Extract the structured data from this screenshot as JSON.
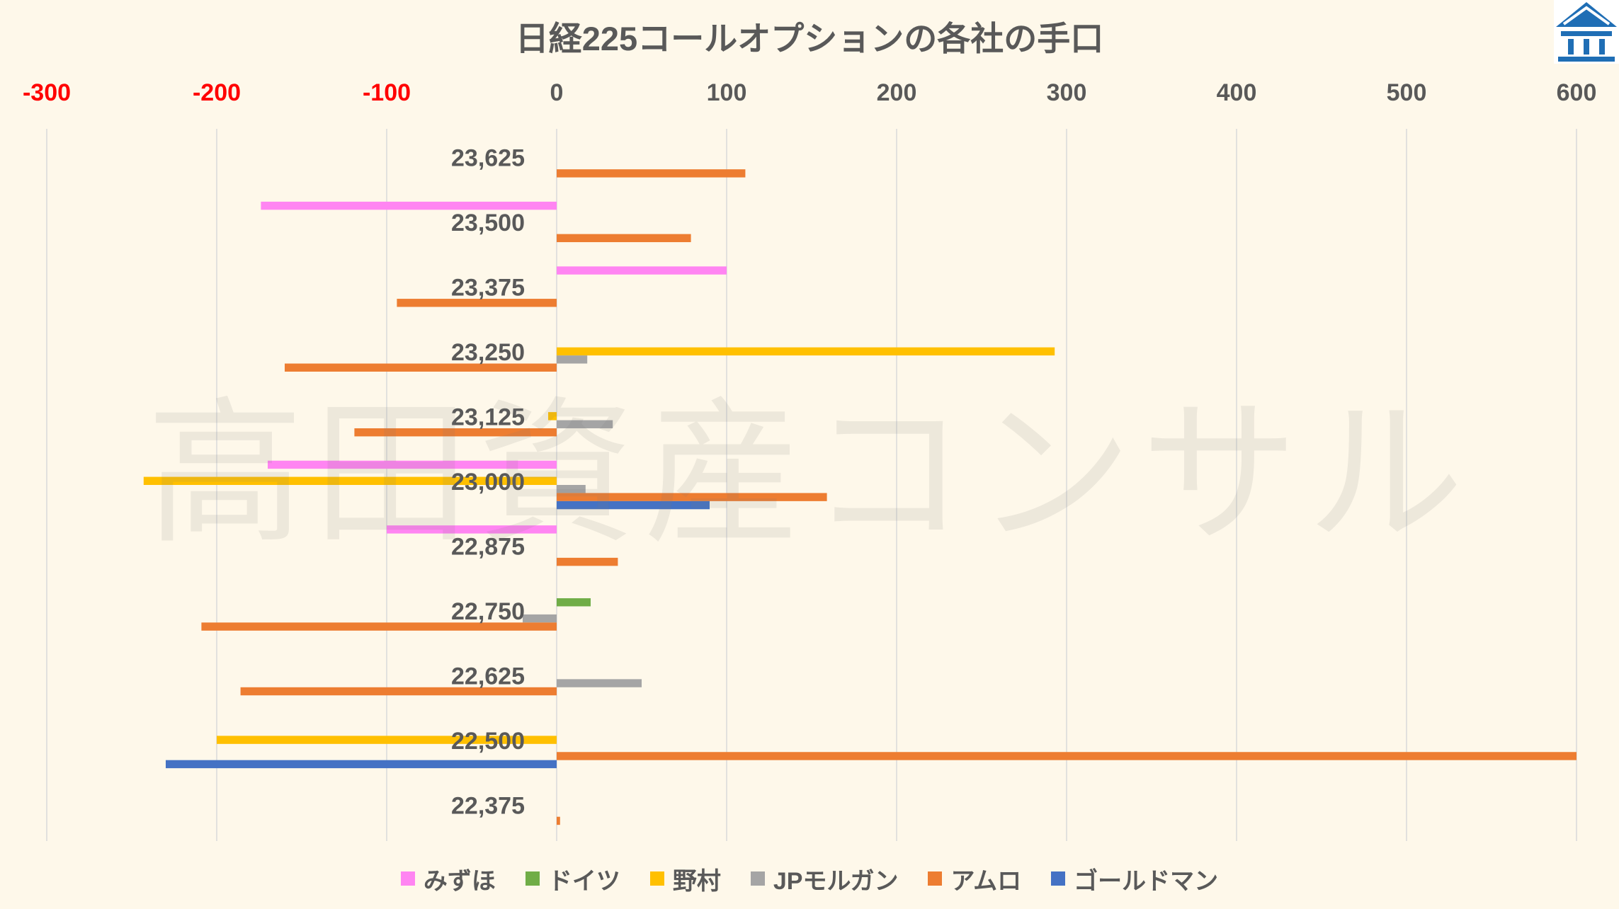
{
  "watermark": {
    "text": "高田資産コンサル"
  },
  "logo": {
    "icon": "house-logo-icon",
    "color": "#1F6EB5"
  },
  "colors": {
    "background": "#FEF8EA",
    "text": "#595959",
    "negative_tick": "#FF0000",
    "grid": "#D9D9D9"
  },
  "chart_data": {
    "type": "bar",
    "orientation": "horizontal",
    "title": "日経225コールオプションの各社の手口",
    "categories": [
      "23,625",
      "23,500",
      "23,375",
      "23,250",
      "23,125",
      "23,000",
      "22,875",
      "22,750",
      "22,625",
      "22,500",
      "22,375"
    ],
    "series": [
      {
        "name": "みずほ",
        "color": "#FF85F2",
        "values": [
          null,
          -174,
          100,
          null,
          null,
          -170,
          -100,
          null,
          null,
          null,
          null
        ]
      },
      {
        "name": "ドイツ",
        "color": "#70AD47",
        "values": [
          null,
          null,
          null,
          null,
          null,
          null,
          null,
          20,
          null,
          null,
          null
        ]
      },
      {
        "name": "野村",
        "color": "#FFC000",
        "values": [
          null,
          null,
          null,
          293,
          -5,
          -243,
          null,
          null,
          null,
          -200,
          null
        ]
      },
      {
        "name": "JPモルガン",
        "color": "#A5A5A5",
        "values": [
          null,
          null,
          null,
          18,
          33,
          17,
          null,
          -20,
          50,
          null,
          null
        ]
      },
      {
        "name": "アムロ",
        "color": "#ED7D31",
        "values": [
          111,
          79,
          -94,
          -160,
          -119,
          159,
          36,
          -209,
          -186,
          600,
          2
        ]
      },
      {
        "name": "ゴールドマン",
        "color": "#4472C4",
        "values": [
          null,
          null,
          null,
          null,
          null,
          90,
          null,
          null,
          null,
          -230,
          null
        ]
      }
    ],
    "xlim": [
      -300,
      600
    ],
    "xticks": [
      -300,
      -200,
      -100,
      0,
      100,
      200,
      300,
      400,
      500,
      600
    ],
    "x_axis_position": "top",
    "grid": true,
    "legend_position": "bottom"
  }
}
